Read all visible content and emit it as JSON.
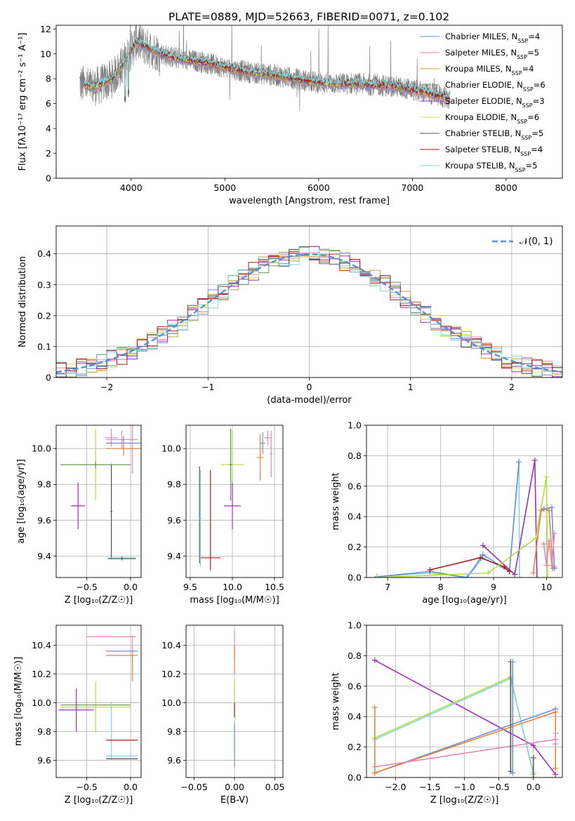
{
  "series_meta": [
    {
      "name": "Chabrier MILES",
      "nssp": "4",
      "color": "#6d8fd4"
    },
    {
      "name": "Salpeter MILES",
      "nssp": "5",
      "color": "#e587b5"
    },
    {
      "name": "Kroupa MILES",
      "nssp": "4",
      "color": "#c1a13a"
    },
    {
      "name": "Chabrier ELODIE",
      "nssp": "6",
      "color": "#6d8f66"
    },
    {
      "name": "Salpeter ELODIE",
      "nssp": "3",
      "color": "#a22fb5"
    },
    {
      "name": "Kroupa ELODIE",
      "nssp": "6",
      "color": "#d4e35a"
    },
    {
      "name": "Chabrier STELIB",
      "nssp": "5",
      "color": "#555555"
    },
    {
      "name": "Salpeter STELIB",
      "nssp": "4",
      "color": "#b01c1c"
    },
    {
      "name": "Kroupa STELIB",
      "nssp": "5",
      "color": "#7fd4d6"
    }
  ],
  "accent_colors": {
    "orange": "#e6833a",
    "violet": "#9d2fb4",
    "lime": "#b5dc3f",
    "cyan": "#7ed6de"
  },
  "chart_data": [
    {
      "id": "spectrum",
      "type": "line",
      "title": "PLATE=0889, MJD=52663, FIBERID=0071, z=0.102",
      "xlabel": "wavelength [Angstrom, rest frame]",
      "ylabel": "Flux [fλ10⁻¹⁷ erg cm⁻² s⁻¹ A⁻¹]",
      "xlim": [
        3200,
        8600
      ],
      "ylim": [
        0,
        12.3
      ],
      "xticks": [
        4000,
        5000,
        6000,
        7000,
        8000
      ],
      "yticks": [
        0,
        2,
        4,
        6,
        8,
        10,
        12
      ],
      "legend": "top-right",
      "continuum": {
        "x": [
          3450,
          3600,
          3800,
          3950,
          4050,
          4200,
          4400,
          4600,
          4800,
          5000,
          5200,
          5400,
          5600,
          5800,
          6000,
          6200,
          6400,
          6600,
          6800,
          7000,
          7200,
          7400
        ],
        "y": [
          7.6,
          7.3,
          8.0,
          9.6,
          11.0,
          10.4,
          9.8,
          9.5,
          9.3,
          8.9,
          8.6,
          8.4,
          8.2,
          7.9,
          7.7,
          7.6,
          7.6,
          7.5,
          7.4,
          7.1,
          6.8,
          6.4
        ]
      },
      "data_range": [
        3450,
        7400
      ],
      "model_range": [
        3500,
        7400
      ]
    },
    {
      "id": "residuals",
      "type": "histogram",
      "xlabel": "(data-model)/error",
      "ylabel": "Normed distribution",
      "xlim": [
        -2.5,
        2.5
      ],
      "ylim": [
        0,
        0.49
      ],
      "xticks": [
        -2,
        -1,
        0,
        1,
        2
      ],
      "yticks": [
        0.0,
        0.1,
        0.2,
        0.3,
        0.4
      ],
      "xtick_labels": [
        "−2",
        "−1",
        "0",
        "1",
        "2"
      ],
      "reference": {
        "name": "𝒩(0, 1)",
        "mean": 0,
        "sigma": 1
      },
      "bin_width": 0.1,
      "legend": "top-right"
    },
    {
      "id": "age-vs-z",
      "type": "errorbar",
      "xlabel": "Z [log₁₀(Z/Z☉)]",
      "ylabel": "age  [log₁₀(age/yr)]",
      "xlim": [
        -0.85,
        0.12
      ],
      "ylim": [
        9.28,
        10.13
      ],
      "xticks": [
        -0.5,
        0.0
      ],
      "xtick_labels": [
        "−0.5",
        "0.0"
      ],
      "yticks": [
        9.4,
        9.6,
        9.8,
        10.0
      ],
      "ytick_labels": [
        "9.4",
        "9.6",
        "9.8",
        "10.0"
      ],
      "points": [
        {
          "x": -0.22,
          "xerr": 0.07,
          "y": 10.06,
          "yerr": 0.05,
          "c": "#e587b5"
        },
        {
          "x": -0.1,
          "xerr": 0.18,
          "y": 10.05,
          "yerr": 0.05,
          "c": "#e587b5"
        },
        {
          "x": 0.02,
          "xerr": 0.03,
          "y": 10.03,
          "yerr": 0.17,
          "c": "#e587b5"
        },
        {
          "x": -0.08,
          "xerr": 0.2,
          "y": 10.03,
          "yerr": 0.04,
          "c": "#6d8fd4"
        },
        {
          "x": -0.08,
          "xerr": 0.2,
          "y": 10.0,
          "yerr": 0.04,
          "c": "#e6833a"
        },
        {
          "x": -0.4,
          "xerr": 0.4,
          "y": 9.91,
          "yerr": 0.2,
          "c": "#b5dc3f"
        },
        {
          "x": -0.4,
          "xerr": 0.4,
          "y": 9.91,
          "yerr": 0.02,
          "c": "#6d8f66"
        },
        {
          "x": -0.6,
          "xerr": 0.08,
          "y": 9.68,
          "yerr": 0.13,
          "c": "#9d2fb4"
        },
        {
          "x": -0.22,
          "xerr": 0.01,
          "y": 9.65,
          "yerr": 0.27,
          "c": "#7ed6de"
        },
        {
          "x": -0.22,
          "xerr": 0.01,
          "y": 9.65,
          "yerr": 0.26,
          "c": "#555555"
        },
        {
          "x": -0.1,
          "xerr": 0.16,
          "y": 9.39,
          "yerr": 0.01,
          "c": "#7ed6de"
        },
        {
          "x": -0.1,
          "xerr": 0.16,
          "y": 9.385,
          "yerr": 0.01,
          "c": "#555555"
        }
      ]
    },
    {
      "id": "age-vs-mass",
      "type": "errorbar",
      "xlabel": "mass [log₁₀(M/M☉)]",
      "ylabel": "",
      "xlim": [
        9.45,
        10.6
      ],
      "ylim": [
        9.28,
        10.13
      ],
      "xticks": [
        9.5,
        10.0,
        10.5
      ],
      "xtick_labels": [
        "9.5",
        "10.0",
        "10.5"
      ],
      "yticks": [
        9.4,
        9.6,
        9.8,
        10.0
      ],
      "ytick_labels": [
        "9.4",
        "9.6",
        "9.8",
        "10.0"
      ],
      "points": [
        {
          "x": 10.42,
          "xerr": 0.04,
          "y": 10.06,
          "yerr": 0.04,
          "c": "#e587b5"
        },
        {
          "x": 10.46,
          "xerr": 0.02,
          "y": 9.97,
          "yerr": 0.13,
          "c": "#e587b5"
        },
        {
          "x": 10.36,
          "xerr": 0.03,
          "y": 10.03,
          "yerr": 0.06,
          "c": "#6d8fd4"
        },
        {
          "x": 10.33,
          "xerr": 0.04,
          "y": 9.95,
          "yerr": 0.13,
          "c": "#e6833a"
        },
        {
          "x": 10.0,
          "xerr": 0.14,
          "y": 9.91,
          "yerr": 0.19,
          "c": "#b5dc3f"
        },
        {
          "x": 9.98,
          "xerr": 0.02,
          "y": 9.91,
          "yerr": 0.2,
          "c": "#6d8f66"
        },
        {
          "x": 10.0,
          "xerr": 0.1,
          "y": 9.68,
          "yerr": 0.13,
          "c": "#9d2fb4"
        },
        {
          "x": 9.74,
          "xerr": 0.0,
          "y": 9.6,
          "yerr": 0.28,
          "c": "#b01c1c"
        },
        {
          "x": 9.74,
          "xerr": 0.12,
          "y": 9.39,
          "yerr": 0.0,
          "c": "#b01c1c"
        },
        {
          "x": 9.61,
          "xerr": 0.0,
          "y": 9.63,
          "yerr": 0.27,
          "c": "#555555"
        },
        {
          "x": 9.62,
          "xerr": 0.02,
          "y": 9.61,
          "yerr": 0.27,
          "c": "#7ed6de"
        }
      ]
    },
    {
      "id": "weight-vs-age",
      "type": "line",
      "xlabel": "age  [log₁₀(age/yr)]",
      "ylabel": "mass weight",
      "xlim": [
        6.6,
        10.3
      ],
      "ylim": [
        0,
        1.0
      ],
      "xticks": [
        7,
        8,
        9,
        10
      ],
      "xtick_labels": [
        "7",
        "8",
        "9",
        "10"
      ],
      "yticks": [
        0.0,
        0.2,
        0.4,
        0.6,
        0.8,
        1.0
      ],
      "ytick_labels": [
        "0.0",
        "0.2",
        "0.4",
        "0.6",
        "0.8",
        "1.0"
      ],
      "series": [
        {
          "c": "#7ed6de",
          "x": [
            6.8,
            7.8,
            8.5,
            8.8,
            9.3,
            9.48,
            9.49
          ],
          "y": [
            0.005,
            0.03,
            0.0,
            0.13,
            0.04,
            0.76,
            0.0
          ]
        },
        {
          "c": "#6d8fd4",
          "x": [
            6.8,
            7.8,
            8.5,
            8.8,
            9.3,
            9.48
          ],
          "y": [
            0.005,
            0.04,
            0.0,
            0.15,
            0.04,
            0.76
          ]
        },
        {
          "c": "#9d2fb4",
          "x": [
            8.8,
            9.4,
            9.78,
            9.82
          ],
          "y": [
            0.21,
            0.02,
            0.77,
            0.0
          ]
        },
        {
          "c": "#b01c1c",
          "x": [
            7.8,
            8.75,
            9.2,
            9.3
          ],
          "y": [
            0.05,
            0.13,
            0.07,
            0.04
          ]
        },
        {
          "c": "#b5dc3f",
          "x": [
            6.8,
            8.9,
            9.8,
            10.0,
            10.02
          ],
          "y": [
            0.0,
            0.03,
            0.26,
            0.66,
            0.0
          ]
        },
        {
          "c": "#e6833a",
          "x": [
            9.75,
            9.9,
            9.95,
            10.05,
            10.12,
            10.15
          ],
          "y": [
            0.03,
            0.44,
            0.45,
            0.44,
            0.06,
            0.07
          ]
        },
        {
          "c": "#6d8fd4",
          "x": [
            9.95,
            10.1,
            10.15
          ],
          "y": [
            0.45,
            0.46,
            0.06
          ]
        },
        {
          "c": "#e587b5",
          "x": [
            9.95,
            10.0,
            10.05,
            10.1,
            10.15
          ],
          "y": [
            0.22,
            0.08,
            0.24,
            0.08,
            0.29
          ]
        }
      ]
    },
    {
      "id": "mass-vs-z",
      "type": "errorbar",
      "xlabel": "Z [log₁₀(Z/Z☉)]",
      "ylabel": "mass [log₁₀(M/M☉)]",
      "xlim": [
        -0.85,
        0.12
      ],
      "ylim": [
        9.48,
        10.54
      ],
      "xticks": [
        -0.5,
        0.0
      ],
      "xtick_labels": [
        "−0.5",
        "0.0"
      ],
      "yticks": [
        9.6,
        9.8,
        10.0,
        10.2,
        10.4
      ],
      "ytick_labels": [
        "9.6",
        "9.8",
        "10.0",
        "10.2",
        "10.4"
      ],
      "points": [
        {
          "x": -0.22,
          "xerr": 0.28,
          "y": 10.46,
          "yerr": 0.0,
          "c": "#e587b5"
        },
        {
          "x": 0.02,
          "xerr": 0.0,
          "y": 10.35,
          "yerr": 0.12,
          "c": "#e587b5"
        },
        {
          "x": -0.1,
          "xerr": 0.18,
          "y": 10.36,
          "yerr": 0.0,
          "c": "#6d8fd4"
        },
        {
          "x": -0.1,
          "xerr": 0.18,
          "y": 10.33,
          "yerr": 0.0,
          "c": "#e6833a"
        },
        {
          "x": 0.02,
          "xerr": 0.0,
          "y": 10.25,
          "yerr": 0.1,
          "c": "#e6833a"
        },
        {
          "x": -0.4,
          "xerr": 0.4,
          "y": 9.97,
          "yerr": 0.18,
          "c": "#b5dc3f"
        },
        {
          "x": -0.4,
          "xerr": 0.4,
          "y": 9.985,
          "yerr": 0.0,
          "c": "#6d8f66"
        },
        {
          "x": -0.62,
          "xerr": 0.2,
          "y": 9.95,
          "yerr": 0.15,
          "c": "#9d2fb4"
        },
        {
          "x": -0.22,
          "xerr": 0.0,
          "y": 9.8,
          "yerr": 0.2,
          "c": "#7ed6de"
        },
        {
          "x": -0.1,
          "xerr": 0.18,
          "y": 9.74,
          "yerr": 0.0,
          "c": "#b01c1c"
        },
        {
          "x": -0.1,
          "xerr": 0.18,
          "y": 9.63,
          "yerr": 0.0,
          "c": "#7ed6de"
        },
        {
          "x": -0.1,
          "xerr": 0.18,
          "y": 9.61,
          "yerr": 0.0,
          "c": "#555555"
        }
      ]
    },
    {
      "id": "mass-vs-ebv",
      "type": "errorbar",
      "xlabel": "E(B-V)",
      "ylabel": "",
      "xlim": [
        -0.06,
        0.06
      ],
      "ylim": [
        9.48,
        10.54
      ],
      "xticks": [
        -0.05,
        0.0,
        0.05
      ],
      "xtick_labels": [
        "−0.05",
        "0.00",
        "0.05"
      ],
      "yticks": [
        9.6,
        9.8,
        10.0,
        10.2,
        10.4
      ],
      "ytick_labels": [
        "9.6",
        "9.8",
        "10.0",
        "10.2",
        "10.4"
      ],
      "points": [
        {
          "x": 0.0,
          "xerr": 0.0,
          "y": 10.4,
          "yerr": 0.1,
          "c": "#e587b5"
        },
        {
          "x": 0.0,
          "xerr": 0.0,
          "y": 10.3,
          "yerr": 0.1,
          "c": "#e6833a"
        },
        {
          "x": 0.0,
          "xerr": 0.0,
          "y": 10.0,
          "yerr": 0.15,
          "c": "#b5dc3f"
        },
        {
          "x": 0.0,
          "xerr": 0.0,
          "y": 9.75,
          "yerr": 0.12,
          "c": "#7ed6de"
        },
        {
          "x": 0.0,
          "xerr": 0.0,
          "y": 9.95,
          "yerr": 0.05,
          "c": "#b01c1c"
        },
        {
          "x": 0.0,
          "xerr": 0.0,
          "y": 9.7,
          "yerr": 0.15,
          "c": "#6d8fd4"
        }
      ]
    },
    {
      "id": "weight-vs-z",
      "type": "line",
      "xlabel": "Z [log₁₀(Z/Z☉)]",
      "ylabel": "mass weight",
      "xlim": [
        -2.42,
        0.42
      ],
      "ylim": [
        0,
        1.0
      ],
      "xticks": [
        -2.0,
        -1.5,
        -1.0,
        -0.5,
        0.0
      ],
      "xtick_labels": [
        "−2.0",
        "−1.5",
        "−1.0",
        "−0.5",
        "0.0"
      ],
      "yticks": [
        0.0,
        0.2,
        0.4,
        0.6,
        0.8,
        1.0
      ],
      "ytick_labels": [
        "0.0",
        "0.2",
        "0.4",
        "0.6",
        "0.8",
        "1.0"
      ],
      "series": [
        {
          "c": "#9d2fb4",
          "x": [
            -2.3,
            0.0,
            0.32
          ],
          "y": [
            0.77,
            0.21,
            0.02
          ]
        },
        {
          "c": "#b5dc3f",
          "x": [
            -2.3,
            -0.33,
            0.0
          ],
          "y": [
            0.26,
            0.66,
            0.02
          ]
        },
        {
          "c": "#7ed6de",
          "x": [
            -2.3,
            -0.33,
            0.0
          ],
          "y": [
            0.25,
            0.65,
            0.03
          ]
        },
        {
          "c": "#6d8fd4",
          "x": [
            -2.3,
            0.32
          ],
          "y": [
            0.03,
            0.45
          ]
        },
        {
          "c": "#e6833a",
          "x": [
            -2.3,
            0.32
          ],
          "y": [
            0.03,
            0.43
          ]
        },
        {
          "c": "#e587b5",
          "x": [
            -2.3,
            0.32
          ],
          "y": [
            0.07,
            0.25
          ]
        },
        {
          "c": "#555555",
          "x": [
            -0.33,
            -0.33
          ],
          "y": [
            0.76,
            0.04
          ]
        },
        {
          "c": "#6d8fd4",
          "x": [
            -0.3,
            -0.3
          ],
          "y": [
            0.76,
            0.03
          ]
        },
        {
          "c": "#e6833a",
          "x": [
            -2.3,
            -2.3
          ],
          "y": [
            0.46,
            0.03
          ]
        },
        {
          "c": "#e6833a",
          "x": [
            0.32,
            0.32
          ],
          "y": [
            0.43,
            0.06
          ]
        },
        {
          "c": "#555555",
          "x": [
            0.0,
            0.0
          ],
          "y": [
            0.13,
            0.0
          ]
        },
        {
          "c": "#e587b5",
          "x": [
            0.32,
            0.32
          ],
          "y": [
            0.29,
            0.22
          ]
        }
      ]
    }
  ]
}
